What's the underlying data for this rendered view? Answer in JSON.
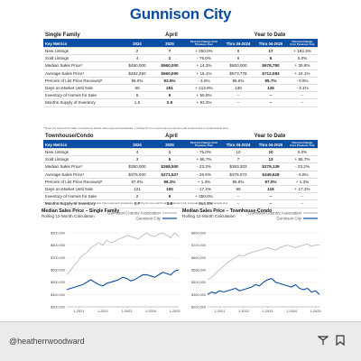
{
  "title": "Gunnison City",
  "tables": [
    {
      "name": "Single Family",
      "group_headers": [
        "April",
        "Year to Date"
      ],
      "columns": [
        "Key Metrics",
        "2024",
        "2025",
        "Percent Change from Previous Year",
        "Thru 04-2024",
        "Thru 04-2025",
        "Percent Change from Previous Year"
      ],
      "rows": [
        [
          "New Listings",
          "2",
          "7",
          "+ 250.0%",
          "6",
          "17",
          "+ 183.3%"
        ],
        [
          "Sold Listings",
          "4",
          "1",
          "- 75.0%",
          "6",
          "6",
          "0.0%"
        ],
        [
          "Median Sales Price*",
          "$490,000",
          "$560,000",
          "+ 14.3%",
          "$500,000",
          "$678,750",
          "+ 35.8%"
        ],
        [
          "Average Sales Price*",
          "$482,250",
          "$560,000",
          "+ 16.1%",
          "$573,778",
          "$712,083",
          "+ 24.1%"
        ],
        [
          "Percent of List Price Received*",
          "98.0%",
          "93.5%",
          "- 4.6%",
          "96.6%",
          "95.7%",
          "- 0.9%"
        ],
        [
          "Days on Market Until Sale",
          "80",
          "251",
          "+ 213.8%",
          "130",
          "126",
          "- 3.1%"
        ],
        [
          "Inventory of Homes for Sale",
          "6",
          "9",
          "+ 50.0%",
          "--",
          "--",
          "--"
        ],
        [
          "Months Supply of Inventory",
          "1.5",
          "2.9",
          "+ 93.3%",
          "--",
          "--",
          "--"
        ]
      ],
      "footnote": "* Does not account for seller concessions and/or down payment assistance.  |  Activity for one month can sometimes look extreme due to small sample size."
    },
    {
      "name": "Townhouse/Condo",
      "group_headers": [
        "April",
        "Year to Date"
      ],
      "columns": [
        "Key Metrics",
        "2024",
        "2025",
        "Percent Change from Previous Year",
        "Thru 04-2024",
        "Thru 04-2025",
        "Percent Change from Previous Year"
      ],
      "rows": [
        [
          "New Listings",
          "4",
          "1",
          "- 75.0%",
          "10",
          "10",
          "0.0%"
        ],
        [
          "Sold Listings",
          "3",
          "5",
          "+ 66.7%",
          "7",
          "13",
          "+ 85.7%"
        ],
        [
          "Median Sales Price*",
          "$350,000",
          "$268,500",
          "- 23.3%",
          "$363,303",
          "$279,139",
          "- 23.2%"
        ],
        [
          "Average Sales Price*",
          "$375,000",
          "$271,527",
          "- 26.6%",
          "$375,072",
          "$349,628",
          "- 6.8%"
        ],
        [
          "Percent of List Price Received*",
          "97.0%",
          "98.3%",
          "+ 1.3%",
          "95.8%",
          "97.0%",
          "+ 1.3%"
        ],
        [
          "Days on Market Until Sale",
          "121",
          "100",
          "- 17.4%",
          "99",
          "116",
          "+ 17.2%"
        ],
        [
          "Inventory of Homes for Sale",
          "2",
          "9",
          "+ 350.0%",
          "--",
          "--",
          "--"
        ],
        [
          "Months Supply of Inventory",
          "0.7",
          "2.9",
          "+ 314.3%",
          "--",
          "--",
          "--"
        ]
      ],
      "footnote": "* Does not account for seller concessions and/or down payment assistance.  |  Activity for one month can sometimes look extreme due to small sample size."
    }
  ],
  "chart_data": [
    {
      "type": "line",
      "title": "Median Sales Price – Single Family",
      "subtitle": "Rolling 12-Month Calculation",
      "categories": [
        null,
        null,
        null,
        "1-2021",
        null,
        null,
        null,
        null,
        null,
        "1-2022",
        null,
        null,
        null,
        null,
        null,
        "1-2023",
        null,
        null,
        null,
        null,
        null,
        "1-2024",
        null,
        null,
        null,
        null,
        null,
        "1-2025",
        null
      ],
      "series": [
        {
          "name": "Gunnison Country Association",
          "color": "#b5b5b5",
          "values": [
            560000,
            600000,
            640000,
            680000,
            720000,
            740000,
            780000,
            800000,
            820000,
            800000,
            840000,
            820000,
            830000,
            850000,
            860000,
            880000,
            870000,
            860000,
            850000,
            880000,
            900000,
            880000,
            870000,
            890000,
            900000,
            880000,
            860000,
            900000,
            870000
          ]
        },
        {
          "name": "Gunnison City",
          "color": "#0b4ea2",
          "values": [
            440000,
            450000,
            460000,
            470000,
            480000,
            500000,
            520000,
            500000,
            480000,
            470000,
            490000,
            500000,
            510000,
            520000,
            540000,
            530000,
            510000,
            520000,
            540000,
            560000,
            560000,
            550000,
            540000,
            560000,
            580000,
            570000,
            560000,
            590000,
            600000
          ]
        }
      ],
      "ylim": [
        300000,
        900000
      ],
      "yticks": [
        {
          "value": 300000,
          "label": "$300,000"
        },
        {
          "value": 400000,
          "label": "$400,000"
        },
        {
          "value": 500000,
          "label": "$500,000"
        },
        {
          "value": 600000,
          "label": "$600,000"
        },
        {
          "value": 700000,
          "label": "$700,000"
        },
        {
          "value": 800000,
          "label": "$800,000"
        },
        {
          "value": 900000,
          "label": "$900,000"
        }
      ],
      "grid": true,
      "legend": "top-right"
    },
    {
      "type": "line",
      "title": "Median Sales Price – Townhouse-Condo",
      "subtitle": "Rolling 12-Month Calculation",
      "categories": [
        null,
        null,
        null,
        "1-2021",
        null,
        null,
        null,
        null,
        null,
        "1-2022",
        null,
        null,
        null,
        null,
        null,
        "1-2023",
        null,
        null,
        null,
        null,
        null,
        "1-2024",
        null,
        null,
        null,
        null,
        null,
        "1-2025",
        null
      ],
      "series": [
        {
          "name": "Gunnison Country Association",
          "color": "#b5b5b5",
          "values": [
            420000,
            440000,
            470000,
            500000,
            530000,
            560000,
            580000,
            600000,
            620000,
            610000,
            630000,
            640000,
            650000,
            660000,
            670000,
            680000,
            670000,
            660000,
            680000,
            690000,
            700000,
            690000,
            680000,
            690000,
            700000,
            710000,
            690000,
            700000,
            700000
          ]
        },
        {
          "name": "Gunnison City",
          "color": "#0b4ea2",
          "values": [
            300000,
            320000,
            310000,
            330000,
            320000,
            330000,
            340000,
            350000,
            330000,
            340000,
            350000,
            360000,
            380000,
            370000,
            400000,
            420000,
            430000,
            400000,
            390000,
            380000,
            370000,
            360000,
            380000,
            350000,
            340000,
            350000,
            320000,
            330000,
            300000
          ]
        }
      ],
      "ylim": [
        200000,
        800000
      ],
      "yticks": [
        {
          "value": 200000,
          "label": "$200,000"
        },
        {
          "value": 300000,
          "label": "$300,000"
        },
        {
          "value": 400000,
          "label": "$400,000"
        },
        {
          "value": 500000,
          "label": "$500,000"
        },
        {
          "value": 600000,
          "label": "$600,000"
        },
        {
          "value": 700000,
          "label": "$700,000"
        },
        {
          "value": 800000,
          "label": "$800,000"
        }
      ],
      "grid": true,
      "legend": "top-right"
    }
  ],
  "footer": {
    "handle": "@heatherrwoodward"
  }
}
